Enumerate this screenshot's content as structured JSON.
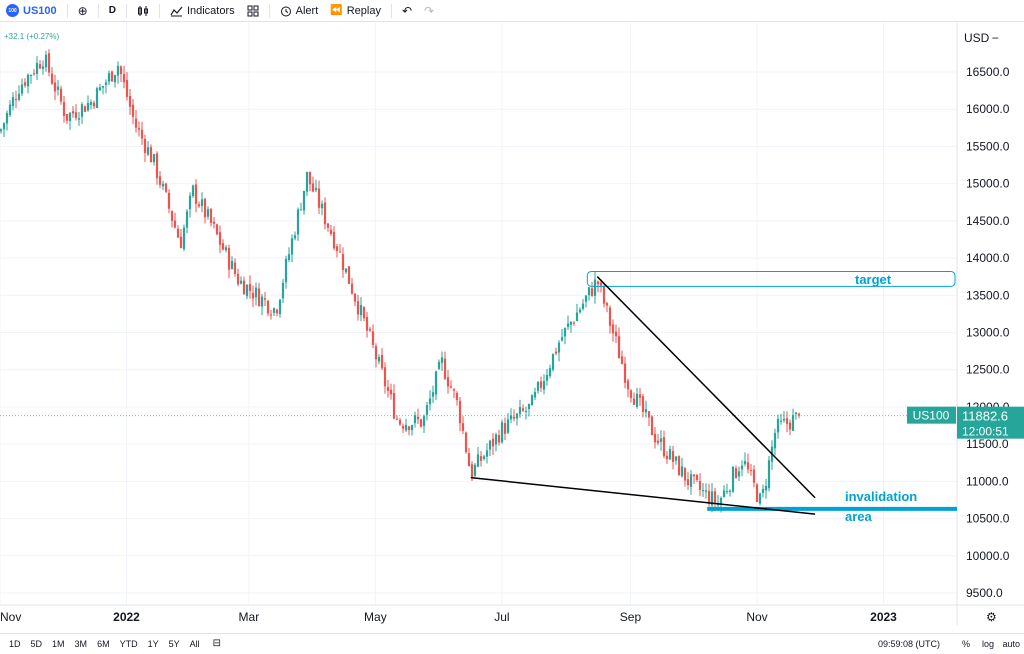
{
  "toolbar": {
    "symbol_badge": "100",
    "symbol": "US100",
    "interval": "D",
    "indicators_label": "Indicators",
    "alert_label": "Alert",
    "replay_label": "Replay"
  },
  "change_text": "+32.1 (+0.27%)",
  "currency": "USD",
  "last_price": {
    "symbol": "US100",
    "price": "11882.6",
    "countdown": "12:00:51"
  },
  "annotations": {
    "target": "target",
    "invalidation_line1": "invalidation",
    "invalidation_line2": "area"
  },
  "bottombar": {
    "ranges": [
      "1D",
      "5D",
      "1M",
      "3M",
      "6M",
      "YTD",
      "1Y",
      "5Y",
      "All"
    ],
    "clock": "09:59:08 (UTC)",
    "percent": "%",
    "log": "log",
    "auto": "auto"
  },
  "colors": {
    "up": "#26a69a",
    "down": "#ef5350",
    "accent": "#2962ff",
    "annotation": "#00a2d6"
  },
  "chart_data": {
    "type": "candlestick",
    "symbol": "US100",
    "y_axis_ticks": [
      "16500.0",
      "16000.0",
      "15500.0",
      "15000.0",
      "14500.0",
      "14000.0",
      "13500.0",
      "13000.0",
      "12500.0",
      "12000.0",
      "11500.0",
      "11000.0",
      "10500.0",
      "10000.0",
      "9500.0"
    ],
    "x_axis_ticks": [
      "Nov",
      "2022",
      "Mar",
      "May",
      "Jul",
      "Sep",
      "Nov",
      "2023"
    ],
    "ylim": [
      9400,
      17100
    ],
    "last_price": 11882.6,
    "approx_close_path": [
      [
        "2021-11-01",
        15700
      ],
      [
        "2021-11-10",
        16300
      ],
      [
        "2021-11-22",
        16700
      ],
      [
        "2021-12-03",
        15900
      ],
      [
        "2021-12-15",
        16100
      ],
      [
        "2021-12-28",
        16600
      ],
      [
        "2022-01-05",
        15800
      ],
      [
        "2022-01-14",
        15300
      ],
      [
        "2022-01-27",
        14200
      ],
      [
        "2022-02-02",
        14900
      ],
      [
        "2022-02-10",
        14500
      ],
      [
        "2022-02-24",
        13700
      ],
      [
        "2022-03-14",
        13300
      ],
      [
        "2022-03-29",
        15100
      ],
      [
        "2022-04-12",
        14200
      ],
      [
        "2022-04-26",
        13100
      ],
      [
        "2022-05-12",
        11800
      ],
      [
        "2022-05-24",
        11800
      ],
      [
        "2022-06-02",
        12600
      ],
      [
        "2022-06-10",
        12000
      ],
      [
        "2022-06-16",
        11100
      ],
      [
        "2022-07-01",
        11700
      ],
      [
        "2022-07-15",
        12000
      ],
      [
        "2022-07-29",
        12900
      ],
      [
        "2022-08-16",
        13700
      ],
      [
        "2022-08-31",
        12300
      ],
      [
        "2022-09-13",
        11600
      ],
      [
        "2022-09-29",
        11000
      ],
      [
        "2022-10-13",
        10700
      ],
      [
        "2022-10-25",
        11300
      ],
      [
        "2022-11-03",
        10700
      ],
      [
        "2022-11-10",
        11700
      ],
      [
        "2022-11-22",
        11882.6
      ]
    ],
    "zones": [
      {
        "name": "target",
        "from": 13620,
        "to": 13820
      },
      {
        "name": "invalidation area",
        "level": 10630
      }
    ],
    "trendlines": [
      {
        "from": [
          "2022-08-16",
          13750
        ],
        "to": [
          "2022-11-29",
          10780
        ]
      },
      {
        "from": [
          "2022-06-16",
          11050
        ],
        "to": [
          "2022-11-29",
          10560
        ]
      }
    ]
  }
}
